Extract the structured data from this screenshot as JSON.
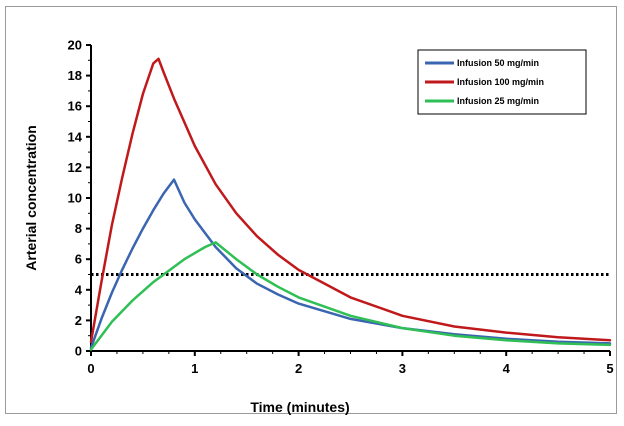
{
  "chart_data": {
    "type": "line",
    "title": "",
    "xlabel": "Time (minutes)",
    "ylabel": "Arterial concentration",
    "xlim": [
      0,
      5
    ],
    "ylim": [
      0,
      20
    ],
    "x_ticks": [
      0,
      1,
      2,
      3,
      4,
      5
    ],
    "y_ticks": [
      0,
      2,
      4,
      6,
      8,
      10,
      12,
      14,
      16,
      18,
      20
    ],
    "grid": false,
    "legend_position": "top-right",
    "threshold_line": {
      "y": 5,
      "style": "dotted",
      "color": "#000000"
    },
    "series": [
      {
        "name": "Infusion 50 mg/min",
        "color": "#3a65b0",
        "x": [
          0,
          0.1,
          0.2,
          0.3,
          0.4,
          0.5,
          0.6,
          0.7,
          0.8,
          0.9,
          1.0,
          1.2,
          1.4,
          1.6,
          1.8,
          2.0,
          2.5,
          3.0,
          3.5,
          4.0,
          4.5,
          5.0
        ],
        "y": [
          0.2,
          2.1,
          3.8,
          5.3,
          6.7,
          8.0,
          9.2,
          10.3,
          11.2,
          9.7,
          8.6,
          6.8,
          5.4,
          4.4,
          3.7,
          3.1,
          2.1,
          1.5,
          1.1,
          0.8,
          0.6,
          0.5
        ]
      },
      {
        "name": "Infusion 100 mg/min",
        "color": "#c0191c",
        "x": [
          0,
          0.1,
          0.2,
          0.3,
          0.4,
          0.5,
          0.6,
          0.65,
          0.7,
          0.8,
          1.0,
          1.2,
          1.4,
          1.6,
          1.8,
          2.0,
          2.5,
          3.0,
          3.5,
          4.0,
          4.5,
          5.0
        ],
        "y": [
          0.6,
          4.5,
          8.2,
          11.3,
          14.2,
          16.8,
          18.8,
          19.1,
          18.2,
          16.5,
          13.4,
          10.9,
          9.0,
          7.5,
          6.3,
          5.3,
          3.5,
          2.3,
          1.6,
          1.2,
          0.9,
          0.7
        ]
      },
      {
        "name": "Infusion 25 mg/min",
        "color": "#2fbf55",
        "x": [
          0,
          0.1,
          0.2,
          0.3,
          0.4,
          0.5,
          0.6,
          0.7,
          0.8,
          0.9,
          1.0,
          1.1,
          1.2,
          1.4,
          1.6,
          1.8,
          2.0,
          2.5,
          3.0,
          3.5,
          4.0,
          4.5,
          5.0
        ],
        "y": [
          0.1,
          1.0,
          1.9,
          2.6,
          3.3,
          3.9,
          4.5,
          5.0,
          5.5,
          6.0,
          6.4,
          6.8,
          7.1,
          6.0,
          5.0,
          4.2,
          3.5,
          2.3,
          1.5,
          1.0,
          0.7,
          0.5,
          0.4
        ]
      }
    ]
  }
}
